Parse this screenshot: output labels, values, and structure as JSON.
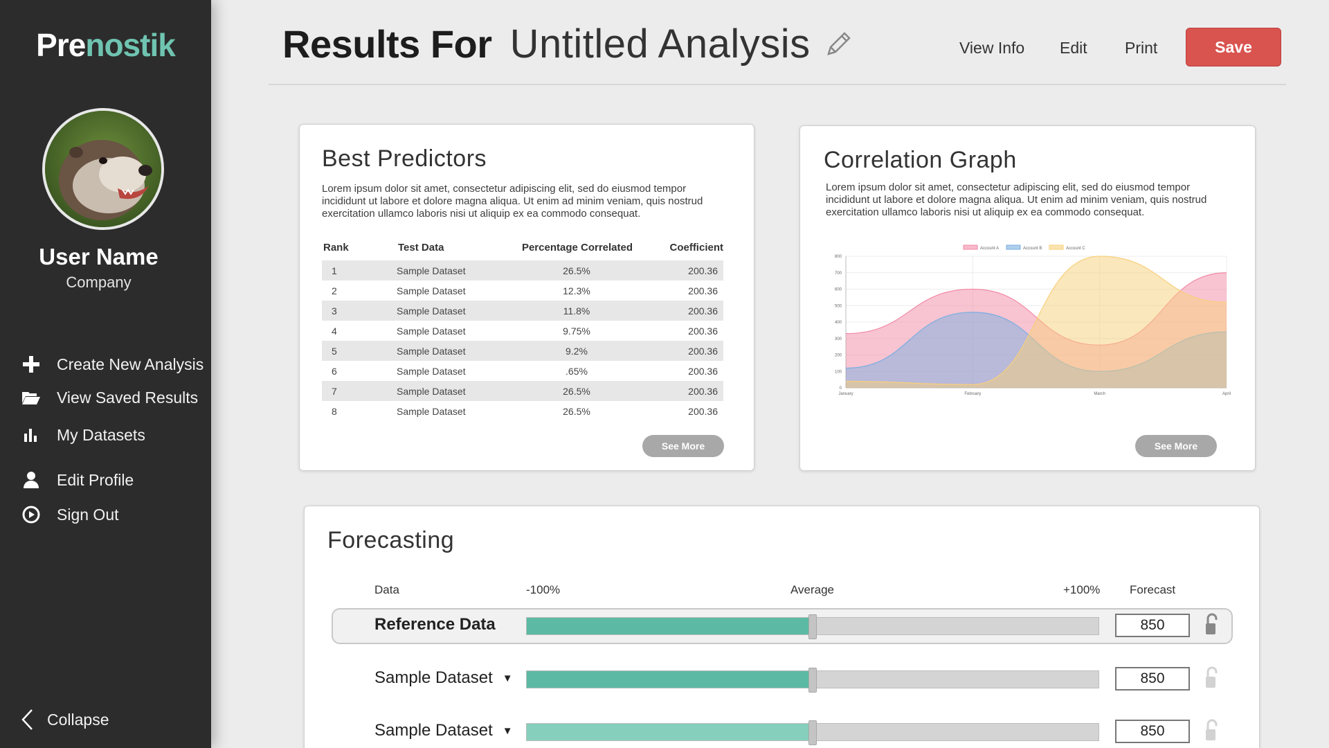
{
  "brand": {
    "prefix": "Pre",
    "suffix": "nostik"
  },
  "user": {
    "name": "User Name",
    "company": "Company"
  },
  "nav": [
    {
      "label": "Create New Analysis",
      "icon": "plus-icon"
    },
    {
      "label": "View Saved Results",
      "icon": "folder-open-icon"
    },
    {
      "label": "My Datasets",
      "icon": "bar-chart-icon"
    },
    {
      "label": "Edit Profile",
      "icon": "user-icon"
    },
    {
      "label": "Sign Out",
      "icon": "power-icon"
    }
  ],
  "collapse_label": "Collapse",
  "header": {
    "title_lead": "Results For",
    "analysis_name": "Untitled Analysis",
    "links": [
      "View Info",
      "Edit",
      "Print"
    ],
    "save_label": "Save"
  },
  "colors": {
    "accent": "#6fc4b1",
    "save": "#d9534f",
    "sidebar": "#2c2c2c",
    "slider_fill": "#5cbaa4"
  },
  "predictors": {
    "title": "Best Predictors",
    "description": "Lorem ipsum dolor sit amet, consectetur adipiscing elit, sed do eiusmod tempor incididunt ut labore et dolore magna aliqua. Ut enim ad minim veniam, quis nostrud exercitation ullamco laboris nisi ut aliquip ex ea commodo consequat.",
    "columns": [
      "Rank",
      "Test Data",
      "Percentage Correlated",
      "Coefficient"
    ],
    "rows": [
      [
        "1",
        "Sample Dataset",
        "26.5%",
        "200.36"
      ],
      [
        "2",
        "Sample Dataset",
        "12.3%",
        "200.36"
      ],
      [
        "3",
        "Sample Dataset",
        "11.8%",
        "200.36"
      ],
      [
        "4",
        "Sample Dataset",
        "9.75%",
        "200.36"
      ],
      [
        "5",
        "Sample Dataset",
        "9.2%",
        "200.36"
      ],
      [
        "6",
        "Sample Dataset",
        ".65%",
        "200.36"
      ],
      [
        "7",
        "Sample Dataset",
        "26.5%",
        "200.36"
      ],
      [
        "8",
        "Sample Dataset",
        "26.5%",
        "200.36"
      ]
    ],
    "see_more": "See More"
  },
  "correlation": {
    "title": "Correlation Graph",
    "description": "Lorem ipsum dolor sit amet, consectetur adipiscing elit, sed do eiusmod tempor incididunt ut labore et dolore magna aliqua. Ut enim ad minim veniam, quis nostrud exercitation ullamco laboris nisi ut aliquip ex ea commodo consequat.",
    "see_more": "See More"
  },
  "chart_data": {
    "type": "area",
    "x": [
      "January",
      "February",
      "March",
      "April"
    ],
    "series": [
      {
        "name": "Account A",
        "values": [
          330,
          600,
          260,
          700
        ],
        "color": "#f28aa6"
      },
      {
        "name": "Account B",
        "values": [
          120,
          460,
          100,
          340
        ],
        "color": "#7aaee0"
      },
      {
        "name": "Account C",
        "values": [
          40,
          20,
          800,
          520
        ],
        "color": "#f7d07a"
      }
    ],
    "ylim": [
      0,
      800
    ],
    "yticks": [
      "0",
      "100",
      "200",
      "300",
      "400",
      "500",
      "600",
      "700",
      "800"
    ],
    "legend": "top-center",
    "grid": true
  },
  "forecast": {
    "title": "Forecasting",
    "headers": {
      "data": "Data",
      "min": "-100%",
      "mid": "Average",
      "max": "+100%",
      "forecast": "Forecast"
    },
    "rows": [
      {
        "label": "Reference Data",
        "value": "850",
        "level": 0.5,
        "reference": true
      },
      {
        "label": "Sample Dataset",
        "value": "850",
        "level": 0.5,
        "reference": false
      },
      {
        "label": "Sample Dataset",
        "value": "850",
        "level": 0.5,
        "reference": false
      }
    ]
  }
}
